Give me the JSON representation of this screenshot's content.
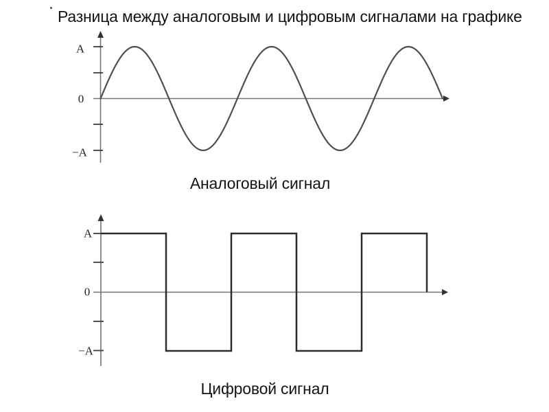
{
  "title_mark": "·",
  "title": "Разница между аналоговым и цифровым сигналами на графике",
  "colors": {
    "background": "#ffffff",
    "axis": "#737373",
    "tick": "#3f3f3f",
    "arrow": "#333333",
    "analog_line": "#4e4e4e",
    "digital_line": "#2c2c2c",
    "text": "#141414",
    "axis_label_text": "#262626"
  },
  "chart_data": [
    {
      "type": "line",
      "waveform": "sine",
      "caption": "Аналоговый сигнал",
      "amplitude": "A",
      "periods_shown": 2.5,
      "y_ticks": [
        "A",
        "0",
        "−A"
      ],
      "ylim": [
        "−A",
        "A"
      ],
      "x_tick_labels": [],
      "starts_at_zero": true,
      "ends_at_zero": true,
      "grid": false,
      "legend": false
    },
    {
      "type": "line",
      "waveform": "square",
      "caption": "Цифровой сигнал",
      "amplitude": "A",
      "periods_shown": 2.5,
      "y_ticks": [
        "A",
        "0",
        "−A"
      ],
      "ylim": [
        "−A",
        "A"
      ],
      "x_tick_labels": [],
      "levels_sequence": [
        "A",
        "−A",
        "A",
        "−A",
        "A"
      ],
      "final_edge_drops_to": "0",
      "grid": false,
      "legend": false
    }
  ]
}
